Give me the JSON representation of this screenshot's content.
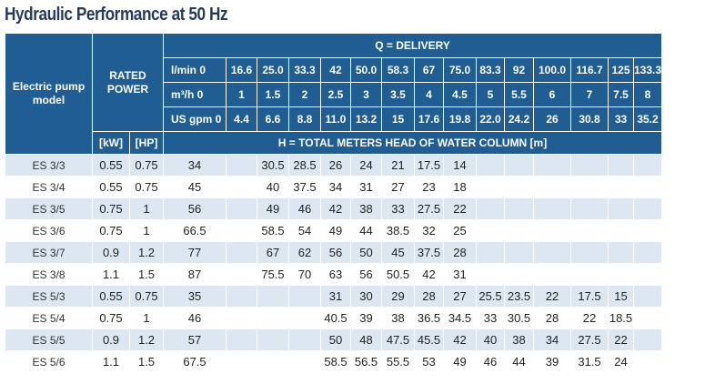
{
  "title": "Hydraulic Performance at 50 Hz",
  "header": {
    "model": "Electric pump model",
    "rated_power": "RATED POWER",
    "delivery": "Q = DELIVERY",
    "units_row": {
      "lmin": "l/min 0",
      "m3h": "m³/h 0",
      "usgpm": "US gpm 0"
    },
    "lmin": [
      "16.6",
      "25.0",
      "33.3",
      "42",
      "50.0",
      "58.3",
      "67",
      "75.0",
      "83.3",
      "92",
      "100.0",
      "116.7",
      "125",
      "133.3"
    ],
    "m3h": [
      "1",
      "1.5",
      "2",
      "2.5",
      "3",
      "3.5",
      "4",
      "4.5",
      "5",
      "5.5",
      "6",
      "7",
      "7.5",
      "8"
    ],
    "usgpm": [
      "4.4",
      "6.6",
      "8.8",
      "11.0",
      "13.2",
      "15",
      "17.6",
      "19.8",
      "22.0",
      "24.2",
      "26",
      "30.8",
      "33",
      "35.2"
    ],
    "kw": "[kW]",
    "hp": "[HP]",
    "head": "H = TOTAL METERS HEAD OF WATER COLUMN [m]"
  },
  "rows": [
    {
      "model": "ES 3/3",
      "kw": "0.55",
      "hp": "0.75",
      "h0": "34",
      "h": [
        "",
        "30.5",
        "28.5",
        "26",
        "24",
        "21",
        "17.5",
        "14",
        "",
        "",
        "",
        "",
        "",
        ""
      ]
    },
    {
      "model": "ES 3/4",
      "kw": "0.55",
      "hp": "0.75",
      "h0": "45",
      "h": [
        "",
        "40",
        "37.5",
        "34",
        "31",
        "27",
        "23",
        "18",
        "",
        "",
        "",
        "",
        "",
        ""
      ]
    },
    {
      "model": "ES 3/5",
      "kw": "0.75",
      "hp": "1",
      "h0": "56",
      "h": [
        "",
        "49",
        "46",
        "42",
        "38",
        "33",
        "27.5",
        "22",
        "",
        "",
        "",
        "",
        "",
        ""
      ]
    },
    {
      "model": "ES 3/6",
      "kw": "0.75",
      "hp": "1",
      "h0": "66.5",
      "h": [
        "",
        "58.5",
        "54",
        "49",
        "44",
        "38.5",
        "32",
        "25",
        "",
        "",
        "",
        "",
        "",
        ""
      ]
    },
    {
      "model": "ES 3/7",
      "kw": "0.9",
      "hp": "1.2",
      "h0": "77",
      "h": [
        "",
        "67",
        "62",
        "56",
        "50",
        "45",
        "37.5",
        "28",
        "",
        "",
        "",
        "",
        "",
        ""
      ]
    },
    {
      "model": "ES 3/8",
      "kw": "1.1",
      "hp": "1.5",
      "h0": "87",
      "h": [
        "",
        "75.5",
        "70",
        "63",
        "56",
        "50.5",
        "42",
        "31",
        "",
        "",
        "",
        "",
        "",
        ""
      ]
    },
    {
      "model": "ES 5/3",
      "kw": "0.55",
      "hp": "0.75",
      "h0": "35",
      "h": [
        "",
        "",
        "",
        "31",
        "30",
        "29",
        "28",
        "27",
        "25.5",
        "23.5",
        "22",
        "17.5",
        "15",
        ""
      ]
    },
    {
      "model": "ES 5/4",
      "kw": "0.75",
      "hp": "1",
      "h0": "46",
      "h": [
        "",
        "",
        "",
        "40.5",
        "39",
        "38",
        "36.5",
        "34.5",
        "33",
        "30.5",
        "28",
        "22",
        "18.5",
        ""
      ]
    },
    {
      "model": "ES 5/5",
      "kw": "0.9",
      "hp": "1.2",
      "h0": "57",
      "h": [
        "",
        "",
        "",
        "50",
        "48",
        "47.5",
        "45.5",
        "42",
        "40",
        "38",
        "34",
        "27.5",
        "22",
        ""
      ]
    },
    {
      "model": "ES 5/6",
      "kw": "1.1",
      "hp": "1.5",
      "h0": "67.5",
      "h": [
        "",
        "",
        "",
        "58.5",
        "56.5",
        "55.5",
        "53",
        "49",
        "46",
        "44",
        "39",
        "31.5",
        "24",
        ""
      ]
    }
  ]
}
